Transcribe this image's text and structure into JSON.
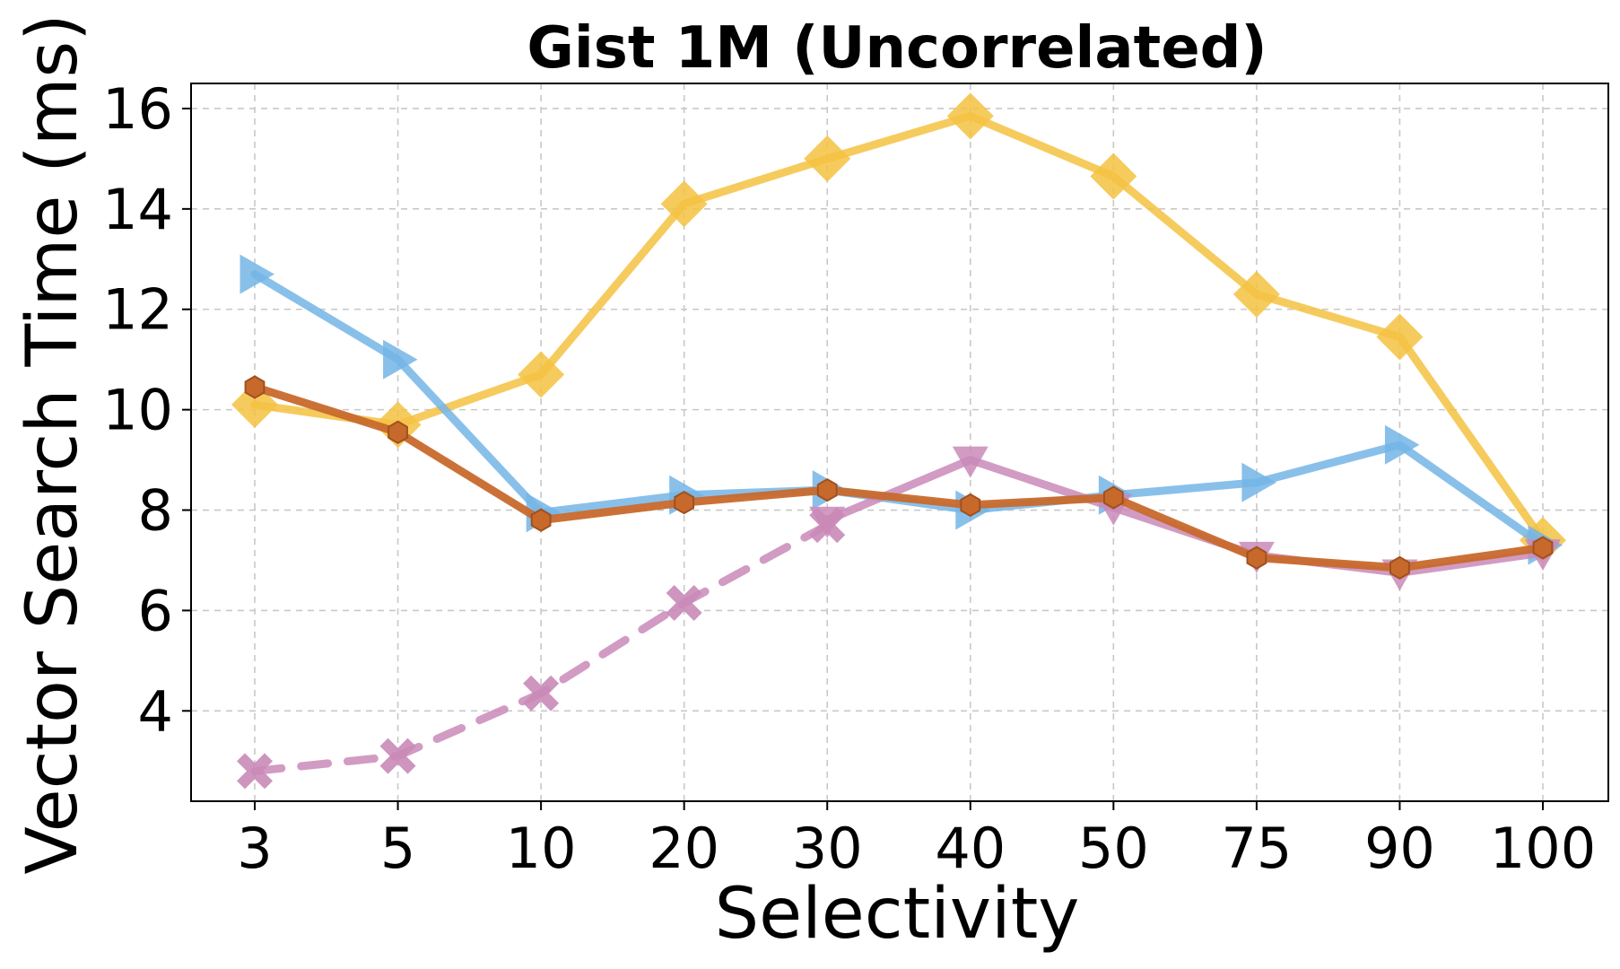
{
  "chart_data": {
    "type": "line",
    "title": "Gist 1M (Uncorrelated)",
    "xlabel": "Selectivity",
    "ylabel": "Vector Search Time (ms)",
    "categories": [
      "3",
      "5",
      "10",
      "20",
      "30",
      "40",
      "50",
      "75",
      "90",
      "100"
    ],
    "yticks": [
      4,
      6,
      8,
      10,
      12,
      14,
      16
    ],
    "ylim": [
      2.2,
      16.5
    ],
    "grid": true,
    "series": [
      {
        "name": "series-yellow-diamond",
        "color": "#f5c242",
        "marker": "diamond",
        "dashed": false,
        "values": [
          10.1,
          9.7,
          10.7,
          14.1,
          15.0,
          15.85,
          14.65,
          12.3,
          11.45,
          7.4
        ]
      },
      {
        "name": "series-blue-triangle-right",
        "color": "#74b5e6",
        "marker": "triangle-right",
        "dashed": false,
        "values": [
          12.7,
          11.0,
          7.95,
          8.3,
          8.4,
          8.0,
          8.3,
          8.55,
          9.3,
          7.3
        ]
      },
      {
        "name": "series-pink-triangle-down",
        "color": "#c98ab8",
        "marker": "triangle-down",
        "dashed": false,
        "values": [
          null,
          null,
          null,
          null,
          7.8,
          9.0,
          8.05,
          7.1,
          6.75,
          7.15
        ]
      },
      {
        "name": "series-pink-x",
        "color": "#c98ab8",
        "marker": "x",
        "dashed": true,
        "values": [
          2.8,
          3.1,
          4.35,
          6.15,
          7.7,
          null,
          null,
          null,
          null,
          null
        ]
      },
      {
        "name": "series-orange-hexagon",
        "color": "#c8692c",
        "marker": "hexagon",
        "dashed": false,
        "values": [
          10.45,
          9.55,
          7.8,
          8.15,
          8.4,
          8.1,
          8.25,
          7.05,
          6.85,
          7.25
        ]
      }
    ]
  }
}
